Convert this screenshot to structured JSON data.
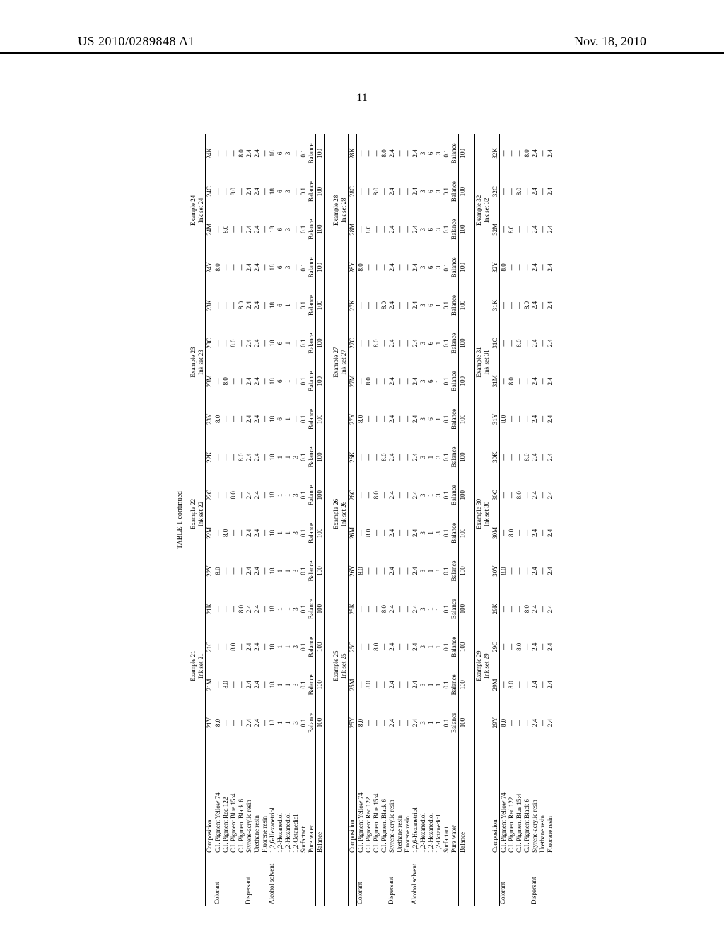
{
  "header": {
    "left": "US 2010/0289848 A1",
    "right": "Nov. 18, 2010",
    "page_number": "11",
    "caption": "TABLE 1-continued"
  },
  "row_categories": [
    "Colorant",
    "",
    "",
    "",
    "Dispersant",
    "",
    "",
    "Alcohol solvent",
    "",
    "",
    "",
    "",
    ""
  ],
  "row_labels": [
    "C.I. Pigment Yellow 74",
    "C.I. Pigment Red 122",
    "C.I. Pigment Blue 15:4",
    "C.I. Pigment Black 6",
    "Styrene-acrylic resin",
    "Urethane resin",
    "Fluorene resin",
    "1,2,6-Hexanetriol",
    "1,2-Hexanediol",
    "1,2-Hexanediol",
    "1,2-Octanediol",
    "Surfactant",
    "Pure water"
  ],
  "balance_label": "Balance",
  "row_categories_short": [
    "Colorant",
    "",
    "",
    "",
    "Dispersant",
    "",
    ""
  ],
  "row_labels_short": [
    "C.I. Pigment Yellow 74",
    "C.I. Pigment Red 122",
    "C.I. Pigment Blue 15:4",
    "C.I. Pigment Black 6",
    "Styrene-acrylic resin",
    "Urethane resin",
    "Fluorene resin"
  ],
  "blocks": [
    {
      "examples": [
        {
          "title": "Example 21",
          "sub": "Ink set 21",
          "cols": [
            "21Y",
            "21M",
            "21C",
            "21K"
          ]
        },
        {
          "title": "Example 22",
          "sub": "Ink set 22",
          "cols": [
            "22Y",
            "22M",
            "22C",
            "22K"
          ]
        },
        {
          "title": "Example 23",
          "sub": "Ink set 23",
          "cols": [
            "23Y",
            "23M",
            "23C",
            "23K"
          ]
        },
        {
          "title": "Example 24",
          "sub": "Ink set 24",
          "cols": [
            "24Y",
            "24M",
            "24C",
            "24K"
          ]
        }
      ],
      "data": [
        [
          "8.0",
          "—",
          "—",
          "—",
          "8.0",
          "—",
          "—",
          "—",
          "8.0",
          "—",
          "—",
          "—",
          "8.0",
          "—",
          "—",
          "—"
        ],
        [
          "—",
          "8.0",
          "—",
          "—",
          "—",
          "8.0",
          "—",
          "—",
          "—",
          "8.0",
          "—",
          "—",
          "—",
          "8.0",
          "—",
          "—"
        ],
        [
          "—",
          "—",
          "8.0",
          "—",
          "—",
          "—",
          "8.0",
          "—",
          "—",
          "—",
          "8.0",
          "—",
          "—",
          "—",
          "8.0",
          "—"
        ],
        [
          "—",
          "—",
          "—",
          "8.0",
          "—",
          "—",
          "—",
          "8.0",
          "—",
          "—",
          "—",
          "8.0",
          "—",
          "—",
          "—",
          "8.0"
        ],
        [
          "2.4",
          "2.4",
          "2.4",
          "2.4",
          "2.4",
          "2.4",
          "2.4",
          "2.4",
          "2.4",
          "2.4",
          "2.4",
          "2.4",
          "2.4",
          "2.4",
          "2.4",
          "2.4"
        ],
        [
          "2.4",
          "2.4",
          "2.4",
          "2.4",
          "2.4",
          "2.4",
          "2.4",
          "2.4",
          "2.4",
          "2.4",
          "2.4",
          "2.4",
          "2.4",
          "2.4",
          "2.4",
          "2.4"
        ],
        [
          "—",
          "—",
          "—",
          "—",
          "—",
          "—",
          "—",
          "—",
          "—",
          "—",
          "—",
          "—",
          "—",
          "—",
          "—",
          "—"
        ],
        [
          "18",
          "18",
          "18",
          "18",
          "18",
          "18",
          "18",
          "18",
          "18",
          "18",
          "18",
          "18",
          "18",
          "18",
          "18",
          "18"
        ],
        [
          "1",
          "1",
          "1",
          "1",
          "1",
          "1",
          "1",
          "1",
          "6",
          "6",
          "6",
          "6",
          "6",
          "6",
          "6",
          "6"
        ],
        [
          "1",
          "1",
          "1",
          "1",
          "1",
          "1",
          "1",
          "1",
          "1",
          "1",
          "1",
          "1",
          "3",
          "3",
          "3",
          "3"
        ],
        [
          "3",
          "3",
          "3",
          "3",
          "3",
          "3",
          "3",
          "3",
          "—",
          "—",
          "—",
          "—",
          "—",
          "—",
          "—",
          "—"
        ],
        [
          "0.1",
          "0.1",
          "0.1",
          "0.1",
          "0.1",
          "0.1",
          "0.1",
          "0.1",
          "0.1",
          "0.1",
          "0.1",
          "0.1",
          "0.1",
          "0.1",
          "0.1",
          "0.1"
        ],
        [
          "Balance",
          "Balance",
          "Balance",
          "Balance",
          "Balance",
          "Balance",
          "Balance",
          "Balance",
          "Balance",
          "Balance",
          "Balance",
          "Balance",
          "Balance",
          "Balance",
          "Balance",
          "Balance"
        ]
      ],
      "balance": [
        "100",
        "100",
        "100",
        "100",
        "100",
        "100",
        "100",
        "100",
        "100",
        "100",
        "100",
        "100",
        "100",
        "100",
        "100",
        "100"
      ]
    },
    {
      "examples": [
        {
          "title": "Example 25",
          "sub": "Ink set 25",
          "cols": [
            "25Y",
            "25M",
            "25C",
            "25K"
          ]
        },
        {
          "title": "Example 26",
          "sub": "Ink set 26",
          "cols": [
            "26Y",
            "26M",
            "26C",
            "26K"
          ]
        },
        {
          "title": "Example 27",
          "sub": "Ink set 27",
          "cols": [
            "27Y",
            "27M",
            "27C",
            "27K"
          ]
        },
        {
          "title": "Example 28",
          "sub": "Ink set 28",
          "cols": [
            "28Y",
            "28M",
            "28C",
            "28K"
          ]
        }
      ],
      "data": [
        [
          "8.0",
          "—",
          "—",
          "—",
          "8.0",
          "—",
          "—",
          "—",
          "8.0",
          "—",
          "—",
          "—",
          "8.0",
          "—",
          "—",
          "—"
        ],
        [
          "—",
          "8.0",
          "—",
          "—",
          "—",
          "8.0",
          "—",
          "—",
          "—",
          "8.0",
          "—",
          "—",
          "—",
          "8.0",
          "—",
          "—"
        ],
        [
          "—",
          "—",
          "8.0",
          "—",
          "—",
          "—",
          "8.0",
          "—",
          "—",
          "—",
          "8.0",
          "—",
          "—",
          "—",
          "8.0",
          "—"
        ],
        [
          "—",
          "—",
          "—",
          "8.0",
          "—",
          "—",
          "—",
          "8.0",
          "—",
          "—",
          "—",
          "8.0",
          "—",
          "—",
          "—",
          "8.0"
        ],
        [
          "2.4",
          "2.4",
          "2.4",
          "2.4",
          "2.4",
          "2.4",
          "2.4",
          "2.4",
          "2.4",
          "2.4",
          "2.4",
          "2.4",
          "2.4",
          "2.4",
          "2.4",
          "2.4"
        ],
        [
          "—",
          "—",
          "—",
          "—",
          "—",
          "—",
          "—",
          "—",
          "—",
          "—",
          "—",
          "—",
          "—",
          "—",
          "—",
          "—"
        ],
        [
          "—",
          "—",
          "—",
          "—",
          "—",
          "—",
          "—",
          "—",
          "—",
          "—",
          "—",
          "—",
          "—",
          "—",
          "—",
          "—"
        ],
        [
          "2.4",
          "2.4",
          "2.4",
          "2.4",
          "2.4",
          "2.4",
          "2.4",
          "2.4",
          "2.4",
          "2.4",
          "2.4",
          "2.4",
          "2.4",
          "2.4",
          "2.4",
          "2.4"
        ],
        [
          "3",
          "3",
          "3",
          "3",
          "3",
          "3",
          "3",
          "3",
          "3",
          "3",
          "3",
          "3",
          "3",
          "3",
          "3",
          "3"
        ],
        [
          "1",
          "1",
          "1",
          "1",
          "1",
          "1",
          "1",
          "1",
          "6",
          "6",
          "6",
          "6",
          "6",
          "6",
          "6",
          "6"
        ],
        [
          "1",
          "1",
          "1",
          "1",
          "3",
          "3",
          "3",
          "3",
          "1",
          "1",
          "1",
          "1",
          "3",
          "3",
          "3",
          "3"
        ],
        [
          "0.1",
          "0.1",
          "0.1",
          "0.1",
          "0.1",
          "0.1",
          "0.1",
          "0.1",
          "0.1",
          "0.1",
          "0.1",
          "0.1",
          "0.1",
          "0.1",
          "0.1",
          "0.1"
        ],
        [
          "Balance",
          "Balance",
          "Balance",
          "Balance",
          "Balance",
          "Balance",
          "Balance",
          "Balance",
          "Balance",
          "Balance",
          "Balance",
          "Balance",
          "Balance",
          "Balance",
          "Balance",
          "Balance"
        ]
      ],
      "balance": [
        "100",
        "100",
        "100",
        "100",
        "100",
        "100",
        "100",
        "100",
        "100",
        "100",
        "100",
        "100",
        "100",
        "100",
        "100",
        "100"
      ]
    },
    {
      "examples": [
        {
          "title": "Example 29",
          "sub": "Ink set 29",
          "cols": [
            "29Y",
            "29M",
            "29C",
            "29K"
          ]
        },
        {
          "title": "Example 30",
          "sub": "Ink set 30",
          "cols": [
            "30Y",
            "30M",
            "30C",
            "30K"
          ]
        },
        {
          "title": "Example 31",
          "sub": "Ink set 31",
          "cols": [
            "31Y",
            "31M",
            "31C",
            "31K"
          ]
        },
        {
          "title": "Example 32",
          "sub": "Ink set 32",
          "cols": [
            "32Y",
            "32M",
            "32C",
            "32K"
          ]
        }
      ],
      "data": [
        [
          "8.0",
          "—",
          "—",
          "—",
          "8.0",
          "—",
          "—",
          "—",
          "8.0",
          "—",
          "—",
          "—",
          "8.0",
          "—",
          "—",
          "—"
        ],
        [
          "—",
          "8.0",
          "—",
          "—",
          "—",
          "8.0",
          "—",
          "—",
          "—",
          "8.0",
          "—",
          "—",
          "—",
          "8.0",
          "—",
          "—"
        ],
        [
          "—",
          "—",
          "8.0",
          "—",
          "—",
          "—",
          "8.0",
          "—",
          "—",
          "—",
          "8.0",
          "—",
          "—",
          "—",
          "8.0",
          "—"
        ],
        [
          "—",
          "—",
          "—",
          "8.0",
          "—",
          "—",
          "—",
          "8.0",
          "—",
          "—",
          "—",
          "8.0",
          "—",
          "—",
          "—",
          "8.0"
        ],
        [
          "2.4",
          "2.4",
          "2.4",
          "2.4",
          "2.4",
          "2.4",
          "2.4",
          "2.4",
          "2.4",
          "2.4",
          "2.4",
          "2.4",
          "2.4",
          "2.4",
          "2.4",
          "2.4"
        ],
        [
          "—",
          "—",
          "—",
          "—",
          "—",
          "—",
          "—",
          "—",
          "—",
          "—",
          "—",
          "—",
          "—",
          "—",
          "—",
          "—"
        ],
        [
          "2.4",
          "2.4",
          "2.4",
          "2.4",
          "2.4",
          "2.4",
          "2.4",
          "2.4",
          "2.4",
          "2.4",
          "2.4",
          "2.4",
          "2.4",
          "2.4",
          "2.4",
          "2.4"
        ]
      ],
      "short": true
    }
  ],
  "composition_label": "Composition"
}
